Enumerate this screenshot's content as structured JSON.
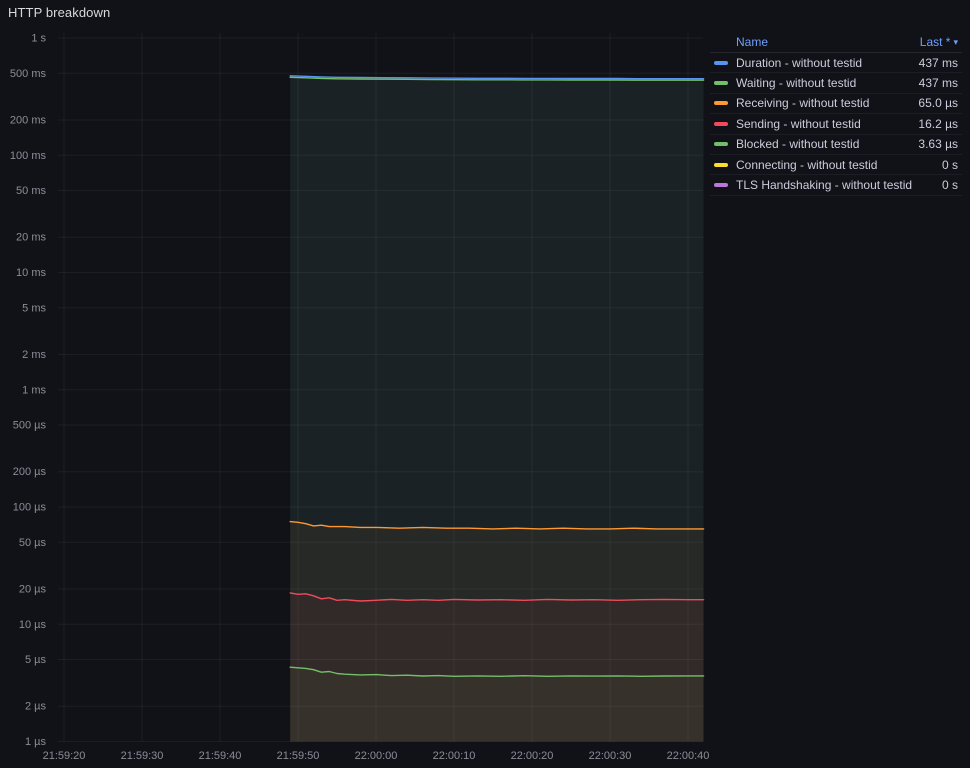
{
  "panel": {
    "title": "HTTP breakdown"
  },
  "colors": {
    "background": "#111217",
    "grid": "rgba(204,204,220,0.07)",
    "axis_text": "rgba(204,204,220,0.65)",
    "accent_link": "#6e9fff",
    "blue": "#5794F2",
    "green": "#73BF69",
    "orange": "#FF9830",
    "red": "#F2495C",
    "yellow": "#FADE2A",
    "purple": "#B877D9"
  },
  "legend": {
    "name_header": "Name",
    "last_header": "Last *",
    "sort_icon": "▾",
    "rows": [
      {
        "label": "Duration - without testid",
        "value": "437 ms",
        "color": "#5794F2"
      },
      {
        "label": "Waiting - without testid",
        "value": "437 ms",
        "color": "#73BF69"
      },
      {
        "label": "Receiving - without testid",
        "value": "65.0 µs",
        "color": "#FF9830"
      },
      {
        "label": "Sending - without testid",
        "value": "16.2 µs",
        "color": "#F2495C"
      },
      {
        "label": "Blocked - without testid",
        "value": "3.63 µs",
        "color": "#73BF69"
      },
      {
        "label": "Connecting - without testid",
        "value": "0 s",
        "color": "#FADE2A"
      },
      {
        "label": "TLS Handshaking - without testid",
        "value": "0 s",
        "color": "#B877D9"
      }
    ]
  },
  "chart_data": {
    "type": "line",
    "title": "HTTP breakdown",
    "xlabel": "",
    "ylabel": "",
    "y_scale": "log10",
    "grid": true,
    "legend_position": "right",
    "x_base_time": "21:59:20",
    "x_range_seconds": [
      -1,
      82
    ],
    "y_range_seconds": [
      1e-06,
      1
    ],
    "x_ticks": [
      {
        "label": "21:59:20",
        "t": 0
      },
      {
        "label": "21:59:30",
        "t": 10
      },
      {
        "label": "21:59:40",
        "t": 20
      },
      {
        "label": "21:59:50",
        "t": 30
      },
      {
        "label": "22:00:00",
        "t": 40
      },
      {
        "label": "22:00:10",
        "t": 50
      },
      {
        "label": "22:00:20",
        "t": 60
      },
      {
        "label": "22:00:30",
        "t": 70
      },
      {
        "label": "22:00:40",
        "t": 80
      }
    ],
    "y_ticks": [
      {
        "label": "1 s",
        "value": 1
      },
      {
        "label": "500 ms",
        "value": 0.5
      },
      {
        "label": "200 ms",
        "value": 0.2
      },
      {
        "label": "100 ms",
        "value": 0.1
      },
      {
        "label": "50 ms",
        "value": 0.05
      },
      {
        "label": "20 ms",
        "value": 0.02
      },
      {
        "label": "10 ms",
        "value": 0.01
      },
      {
        "label": "5 ms",
        "value": 0.005
      },
      {
        "label": "2 ms",
        "value": 0.002
      },
      {
        "label": "1 ms",
        "value": 0.001
      },
      {
        "label": "500 µs",
        "value": 0.0005
      },
      {
        "label": "200 µs",
        "value": 0.0002
      },
      {
        "label": "100 µs",
        "value": 0.0001
      },
      {
        "label": "50 µs",
        "value": 5e-05
      },
      {
        "label": "20 µs",
        "value": 2e-05
      },
      {
        "label": "10 µs",
        "value": 1e-05
      },
      {
        "label": "5 µs",
        "value": 5e-06
      },
      {
        "label": "2 µs",
        "value": 2e-06
      },
      {
        "label": "1 µs",
        "value": 1e-06
      }
    ],
    "series": [
      {
        "name": "Duration - without testid",
        "color": "#5794F2",
        "last": "437 ms",
        "points": [
          [
            29,
            0.462
          ],
          [
            31,
            0.458
          ],
          [
            33,
            0.452
          ],
          [
            35,
            0.449
          ],
          [
            38,
            0.447
          ],
          [
            41,
            0.445
          ],
          [
            44,
            0.444
          ],
          [
            47,
            0.442
          ],
          [
            50,
            0.441
          ],
          [
            53,
            0.44
          ],
          [
            56,
            0.44
          ],
          [
            59,
            0.439
          ],
          [
            62,
            0.439
          ],
          [
            65,
            0.438
          ],
          [
            68,
            0.438
          ],
          [
            71,
            0.438
          ],
          [
            74,
            0.437
          ],
          [
            77,
            0.437
          ],
          [
            80,
            0.437
          ],
          [
            82,
            0.437
          ]
        ]
      },
      {
        "name": "Waiting - without testid",
        "color": "#73BF69",
        "last": "437 ms",
        "points": [
          [
            29,
            0.462
          ],
          [
            31,
            0.458
          ],
          [
            33,
            0.452
          ],
          [
            35,
            0.449
          ],
          [
            38,
            0.447
          ],
          [
            41,
            0.445
          ],
          [
            44,
            0.444
          ],
          [
            47,
            0.442
          ],
          [
            50,
            0.441
          ],
          [
            53,
            0.44
          ],
          [
            56,
            0.44
          ],
          [
            59,
            0.439
          ],
          [
            62,
            0.439
          ],
          [
            65,
            0.438
          ],
          [
            68,
            0.438
          ],
          [
            71,
            0.438
          ],
          [
            74,
            0.437
          ],
          [
            77,
            0.437
          ],
          [
            80,
            0.437
          ],
          [
            82,
            0.437
          ]
        ]
      },
      {
        "name": "Receiving - without testid",
        "color": "#FF9830",
        "last": "65.0 µs",
        "points": [
          [
            29,
            7.5e-05
          ],
          [
            30,
            7.4e-05
          ],
          [
            31,
            7.2e-05
          ],
          [
            32,
            6.9e-05
          ],
          [
            33,
            7e-05
          ],
          [
            34,
            6.8e-05
          ],
          [
            36,
            6.8e-05
          ],
          [
            38,
            6.7e-05
          ],
          [
            40,
            6.7e-05
          ],
          [
            43,
            6.6e-05
          ],
          [
            46,
            6.7e-05
          ],
          [
            49,
            6.6e-05
          ],
          [
            52,
            6.6e-05
          ],
          [
            55,
            6.5e-05
          ],
          [
            58,
            6.6e-05
          ],
          [
            61,
            6.5e-05
          ],
          [
            64,
            6.6e-05
          ],
          [
            67,
            6.5e-05
          ],
          [
            70,
            6.5e-05
          ],
          [
            73,
            6.6e-05
          ],
          [
            76,
            6.5e-05
          ],
          [
            79,
            6.5e-05
          ],
          [
            82,
            6.5e-05
          ]
        ]
      },
      {
        "name": "Sending - without testid",
        "color": "#F2495C",
        "last": "16.2 µs",
        "points": [
          [
            29,
            1.85e-05
          ],
          [
            30,
            1.8e-05
          ],
          [
            31,
            1.82e-05
          ],
          [
            32,
            1.75e-05
          ],
          [
            33,
            1.65e-05
          ],
          [
            34,
            1.68e-05
          ],
          [
            35,
            1.6e-05
          ],
          [
            36,
            1.62e-05
          ],
          [
            38,
            1.58e-05
          ],
          [
            40,
            1.6e-05
          ],
          [
            42,
            1.63e-05
          ],
          [
            44,
            1.6e-05
          ],
          [
            46,
            1.62e-05
          ],
          [
            48,
            1.6e-05
          ],
          [
            50,
            1.63e-05
          ],
          [
            53,
            1.61e-05
          ],
          [
            56,
            1.62e-05
          ],
          [
            59,
            1.6e-05
          ],
          [
            62,
            1.63e-05
          ],
          [
            65,
            1.61e-05
          ],
          [
            68,
            1.62e-05
          ],
          [
            71,
            1.6e-05
          ],
          [
            74,
            1.62e-05
          ],
          [
            77,
            1.63e-05
          ],
          [
            80,
            1.62e-05
          ],
          [
            82,
            1.62e-05
          ]
        ]
      },
      {
        "name": "Blocked - without testid",
        "color": "#73BF69",
        "last": "3.63 µs",
        "points": [
          [
            29,
            4.3e-06
          ],
          [
            30,
            4.25e-06
          ],
          [
            31,
            4.2e-06
          ],
          [
            32,
            4.1e-06
          ],
          [
            33,
            3.9e-06
          ],
          [
            34,
            3.95e-06
          ],
          [
            35,
            3.8e-06
          ],
          [
            36,
            3.75e-06
          ],
          [
            38,
            3.7e-06
          ],
          [
            40,
            3.72e-06
          ],
          [
            42,
            3.65e-06
          ],
          [
            44,
            3.68e-06
          ],
          [
            46,
            3.62e-06
          ],
          [
            48,
            3.65e-06
          ],
          [
            50,
            3.6e-06
          ],
          [
            53,
            3.63e-06
          ],
          [
            56,
            3.6e-06
          ],
          [
            59,
            3.64e-06
          ],
          [
            62,
            3.6e-06
          ],
          [
            65,
            3.63e-06
          ],
          [
            68,
            3.61e-06
          ],
          [
            71,
            3.63e-06
          ],
          [
            74,
            3.6e-06
          ],
          [
            77,
            3.62e-06
          ],
          [
            80,
            3.63e-06
          ],
          [
            82,
            3.63e-06
          ]
        ]
      },
      {
        "name": "Connecting - without testid",
        "color": "#FADE2A",
        "last": "0 s",
        "points": []
      },
      {
        "name": "TLS Handshaking - without testid",
        "color": "#B877D9",
        "last": "0 s",
        "points": []
      }
    ]
  }
}
